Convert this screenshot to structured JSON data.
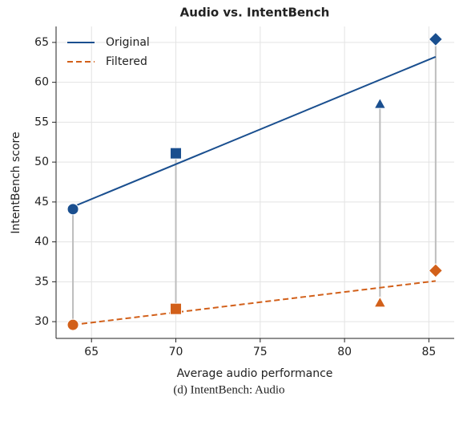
{
  "chart_data": {
    "type": "scatter",
    "title": "Audio vs. IntentBench",
    "xlabel": "Average audio performance",
    "ylabel": "IntentBench score",
    "x": [
      63.9,
      70.0,
      82.1,
      85.4
    ],
    "markers": [
      "circle",
      "square",
      "triangle",
      "diamond"
    ],
    "series": [
      {
        "name": "Original",
        "color": "#1a4f8f",
        "linestyle": "solid",
        "values": [
          44.1,
          51.1,
          57.3,
          65.4
        ],
        "fit": [
          44.4,
          63.2
        ]
      },
      {
        "name": "Filtered",
        "color": "#d2601a",
        "linestyle": "dashed",
        "values": [
          29.6,
          31.6,
          32.4,
          36.4
        ],
        "fit": [
          29.6,
          35.1
        ]
      }
    ],
    "connector_color": "#bdbdbd",
    "xlim": [
      62.9,
      86.5
    ],
    "xticks": [
      65,
      70,
      75,
      80,
      85
    ],
    "ylim": [
      27.9,
      67
    ],
    "yticks": [
      30,
      35,
      40,
      45,
      50,
      55,
      60,
      65
    ],
    "grid": true,
    "legend": "upper left"
  },
  "caption": "(d) IntentBench: Audio"
}
